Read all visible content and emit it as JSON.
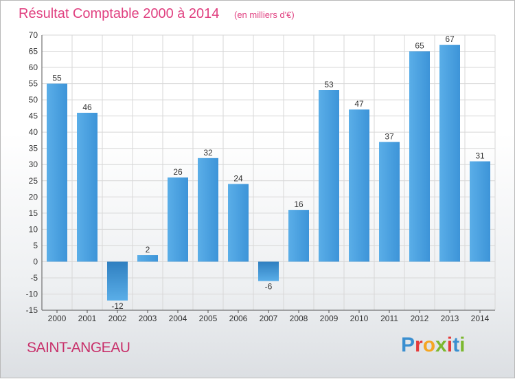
{
  "header": {
    "title": "Résultat Comptable 2000 à 2014",
    "subtitle": "(en milliers d'€)"
  },
  "commune": {
    "name": "SAINT-ANGEAU"
  },
  "brand": {
    "letters": [
      "P",
      "r",
      "o",
      "x",
      "i",
      "t",
      "i"
    ],
    "colors": [
      "#3a8fd0",
      "#e53a3a",
      "#f5a623",
      "#7cb82f",
      "#e53a3a",
      "#3a8fd0",
      "#7cb82f"
    ]
  },
  "chart_data": {
    "type": "bar",
    "title": "Résultat Comptable 2000 à 2014",
    "subtitle": "(en milliers d'€)",
    "categories": [
      "2000",
      "2001",
      "2002",
      "2003",
      "2004",
      "2005",
      "2006",
      "2007",
      "2008",
      "2009",
      "2010",
      "2011",
      "2012",
      "2013",
      "2014"
    ],
    "values": [
      55,
      46,
      -12,
      2,
      26,
      32,
      24,
      -6,
      16,
      53,
      47,
      37,
      65,
      67,
      31
    ],
    "ylim": [
      -15,
      70
    ],
    "ytick_step": 5,
    "grid": true,
    "bar_color": "#3d98db",
    "bar_color_dark": "#2f7fc0"
  }
}
